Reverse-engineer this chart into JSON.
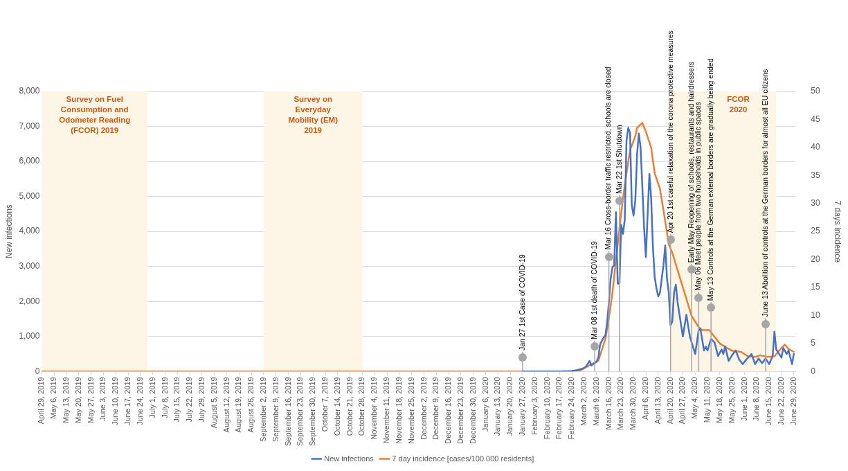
{
  "chart_data": {
    "type": "line",
    "xlabel": null,
    "ylabel": "New infections",
    "y2label": "7 days incidence",
    "xlim": [
      "2019-04-29",
      "2020-06-30"
    ],
    "xticks": [
      {
        "value": "2019-04-29",
        "label": "April 29, 2019"
      },
      {
        "value": "2019-05-06",
        "label": "May 6, 2019"
      },
      {
        "value": "2019-05-13",
        "label": "May 13, 2019"
      },
      {
        "value": "2019-05-20",
        "label": "May 20, 2019"
      },
      {
        "value": "2019-05-27",
        "label": "May 27, 2019"
      },
      {
        "value": "2019-06-03",
        "label": "June 3, 2019"
      },
      {
        "value": "2019-06-10",
        "label": "June 10, 2019"
      },
      {
        "value": "2019-06-17",
        "label": "June 17, 2019"
      },
      {
        "value": "2019-06-24",
        "label": "June 24, 2019"
      },
      {
        "value": "2019-07-01",
        "label": "July 1, 2019"
      },
      {
        "value": "2019-07-08",
        "label": "July 8, 2019"
      },
      {
        "value": "2019-07-15",
        "label": "July 15, 2019"
      },
      {
        "value": "2019-07-22",
        "label": "July 22, 2019"
      },
      {
        "value": "2019-07-29",
        "label": "July 29, 2019"
      },
      {
        "value": "2019-08-05",
        "label": "August 5, 2019"
      },
      {
        "value": "2019-08-12",
        "label": "August 12, 2019"
      },
      {
        "value": "2019-08-19",
        "label": "August 19, 2019"
      },
      {
        "value": "2019-08-26",
        "label": "August 26, 2019"
      },
      {
        "value": "2019-09-02",
        "label": "September 2, 2019"
      },
      {
        "value": "2019-09-09",
        "label": "September 9, 2019"
      },
      {
        "value": "2019-09-16",
        "label": "September 16, 2019"
      },
      {
        "value": "2019-09-23",
        "label": "September 23, 2019"
      },
      {
        "value": "2019-09-30",
        "label": "September 30, 2019"
      },
      {
        "value": "2019-10-07",
        "label": "October 7, 2019"
      },
      {
        "value": "2019-10-14",
        "label": "October 14, 2019"
      },
      {
        "value": "2019-10-21",
        "label": "October 21, 2019"
      },
      {
        "value": "2019-10-28",
        "label": "October 28, 2019"
      },
      {
        "value": "2019-11-04",
        "label": "November 4, 2019"
      },
      {
        "value": "2019-11-11",
        "label": "November 11, 2019"
      },
      {
        "value": "2019-11-18",
        "label": "November 18, 2019"
      },
      {
        "value": "2019-11-25",
        "label": "November 25, 2019"
      },
      {
        "value": "2019-12-02",
        "label": "December 2, 2019"
      },
      {
        "value": "2019-12-09",
        "label": "December 9, 2019"
      },
      {
        "value": "2019-12-16",
        "label": "December 16, 2019"
      },
      {
        "value": "2019-12-23",
        "label": "December 23, 2019"
      },
      {
        "value": "2019-12-30",
        "label": "December 30, 2019"
      },
      {
        "value": "2020-01-06",
        "label": "January 6, 2020"
      },
      {
        "value": "2020-01-13",
        "label": "January 13, 2020"
      },
      {
        "value": "2020-01-20",
        "label": "January 20, 2020"
      },
      {
        "value": "2020-01-27",
        "label": "January 27, 2020"
      },
      {
        "value": "2020-02-03",
        "label": "February 3, 2020"
      },
      {
        "value": "2020-02-10",
        "label": "February 10, 2020"
      },
      {
        "value": "2020-02-17",
        "label": "February 17, 2020"
      },
      {
        "value": "2020-02-24",
        "label": "February 24, 2020"
      },
      {
        "value": "2020-03-02",
        "label": "March 2, 2020"
      },
      {
        "value": "2020-03-09",
        "label": "March 9, 2020"
      },
      {
        "value": "2020-03-16",
        "label": "March 16, 2020"
      },
      {
        "value": "2020-03-23",
        "label": "March 23, 2020"
      },
      {
        "value": "2020-03-30",
        "label": "March 30, 2020"
      },
      {
        "value": "2020-04-06",
        "label": "April 6, 2020"
      },
      {
        "value": "2020-04-13",
        "label": "April 13, 2020"
      },
      {
        "value": "2020-04-20",
        "label": "April 20, 2020"
      },
      {
        "value": "2020-04-27",
        "label": "April 27, 2020"
      },
      {
        "value": "2020-05-04",
        "label": "May 4, 2020"
      },
      {
        "value": "2020-05-11",
        "label": "May 11, 2020"
      },
      {
        "value": "2020-05-18",
        "label": "May 18, 2020"
      },
      {
        "value": "2020-05-25",
        "label": "May 25, 2020"
      },
      {
        "value": "2020-06-01",
        "label": "June 1, 2020"
      },
      {
        "value": "2020-06-08",
        "label": "June 8, 2020"
      },
      {
        "value": "2020-06-15",
        "label": "June 15, 2020"
      },
      {
        "value": "2020-06-22",
        "label": "June 22, 2020"
      },
      {
        "value": "2020-06-29",
        "label": "June 29, 2020"
      }
    ],
    "ylim": [
      0,
      8000
    ],
    "yticks": [
      0,
      {
        "value": 1000,
        "label": "1,000"
      },
      {
        "value": 2000,
        "label": "2,000"
      },
      {
        "value": 3000,
        "label": "3,000"
      },
      {
        "value": 4000,
        "label": "4,000"
      },
      {
        "value": 5000,
        "label": "5,000"
      },
      {
        "value": 6000,
        "label": "6,000"
      },
      {
        "value": 7000,
        "label": "7,000"
      },
      {
        "value": 8000,
        "label": "8,000"
      }
    ],
    "y2lim": [
      0,
      50
    ],
    "y2ticks": [
      0,
      5,
      10,
      15,
      20,
      25,
      30,
      35,
      40,
      45,
      50
    ],
    "grid": "y",
    "legend": "bottom",
    "marker": "none",
    "line_style": "solid",
    "series": [
      {
        "name": "New infections",
        "color": "#4472c4",
        "x": [
          "2020-01-27",
          "2020-02-03",
          "2020-02-10",
          "2020-02-17",
          "2020-02-24",
          "2020-02-27",
          "2020-03-01",
          "2020-03-03",
          "2020-03-05",
          "2020-03-06",
          "2020-03-09",
          "2020-03-10",
          "2020-03-11",
          "2020-03-13",
          "2020-03-14",
          "2020-03-15",
          "2020-03-16",
          "2020-03-17",
          "2020-03-18",
          "2020-03-19",
          "2020-03-20",
          "2020-03-21",
          "2020-03-22",
          "2020-03-23",
          "2020-03-24",
          "2020-03-25",
          "2020-03-26",
          "2020-03-27",
          "2020-03-28",
          "2020-03-29",
          "2020-03-30",
          "2020-03-31",
          "2020-04-01",
          "2020-04-02",
          "2020-04-03",
          "2020-04-04",
          "2020-04-05",
          "2020-04-06",
          "2020-04-07",
          "2020-04-08",
          "2020-04-09",
          "2020-04-10",
          "2020-04-11",
          "2020-04-12",
          "2020-04-13",
          "2020-04-14",
          "2020-04-15",
          "2020-04-16",
          "2020-04-17",
          "2020-04-18",
          "2020-04-19",
          "2020-04-20",
          "2020-04-21",
          "2020-04-22",
          "2020-04-23",
          "2020-04-24",
          "2020-04-27",
          "2020-04-29",
          "2020-05-01",
          "2020-05-04",
          "2020-05-06",
          "2020-05-07",
          "2020-05-09",
          "2020-05-10",
          "2020-05-11",
          "2020-05-13",
          "2020-05-15",
          "2020-05-17",
          "2020-05-19",
          "2020-05-20",
          "2020-05-21",
          "2020-05-23",
          "2020-05-25",
          "2020-05-27",
          "2020-05-29",
          "2020-05-31",
          "2020-06-02",
          "2020-06-05",
          "2020-06-07",
          "2020-06-09",
          "2020-06-11",
          "2020-06-13",
          "2020-06-15",
          "2020-06-17",
          "2020-06-18",
          "2020-06-19",
          "2020-06-22",
          "2020-06-23",
          "2020-06-25",
          "2020-06-26",
          "2020-06-28",
          "2020-06-29"
        ],
        "values": [
          0,
          0,
          0,
          0,
          10,
          40,
          80,
          140,
          300,
          170,
          280,
          400,
          770,
          970,
          1030,
          1390,
          1980,
          2650,
          2970,
          3040,
          4550,
          2510,
          2510,
          4190,
          3930,
          4330,
          6600,
          6960,
          6820,
          4750,
          4450,
          4880,
          6200,
          6800,
          6400,
          5270,
          4090,
          3270,
          4490,
          5640,
          4950,
          3560,
          2700,
          2380,
          2150,
          2250,
          2650,
          3040,
          3600,
          2650,
          2250,
          1320,
          1420,
          2250,
          2480,
          1980,
          1000,
          1620,
          1000,
          500,
          1190,
          1220,
          600,
          710,
          600,
          930,
          830,
          440,
          630,
          500,
          720,
          300,
          470,
          600,
          340,
          210,
          340,
          500,
          210,
          370,
          240,
          370,
          210,
          440,
          1140,
          630,
          400,
          670,
          500,
          600,
          210,
          500
        ]
      },
      {
        "name": "7 day incidence [cases/100.000 residents]",
        "color": "#ed7d31",
        "axis": "y2",
        "x": [
          "2019-04-29",
          "2020-02-22",
          "2020-02-29",
          "2020-03-05",
          "2020-03-10",
          "2020-03-14",
          "2020-03-16",
          "2020-03-18",
          "2020-03-20",
          "2020-03-22",
          "2020-03-24",
          "2020-03-26",
          "2020-03-28",
          "2020-03-31",
          "2020-04-01",
          "2020-04-04",
          "2020-04-06",
          "2020-04-09",
          "2020-04-11",
          "2020-04-14",
          "2020-04-17",
          "2020-04-19",
          "2020-04-21",
          "2020-04-24",
          "2020-04-28",
          "2020-05-02",
          "2020-05-06",
          "2020-05-08",
          "2020-05-12",
          "2020-05-15",
          "2020-05-18",
          "2020-05-22",
          "2020-05-25",
          "2020-05-30",
          "2020-06-03",
          "2020-06-07",
          "2020-06-10",
          "2020-06-14",
          "2020-06-18",
          "2020-06-22",
          "2020-06-24",
          "2020-06-26",
          "2020-06-29"
        ],
        "values": [
          0,
          0,
          0.2,
          1.1,
          1.9,
          5.8,
          9.5,
          14,
          19.8,
          25.6,
          30.9,
          35.4,
          39.5,
          42,
          43.5,
          44.4,
          42.8,
          40,
          35.4,
          32.6,
          26.8,
          22.7,
          21.2,
          18.1,
          14,
          9.9,
          7.9,
          7.4,
          7.4,
          6.2,
          5,
          4.2,
          3.7,
          3.5,
          2.7,
          2.6,
          2.9,
          2.6,
          2.7,
          4.2,
          4.8,
          4,
          3.5
        ]
      }
    ],
    "bands": [
      {
        "axis": "x",
        "from": "2019-04-29",
        "to": "2019-06-28",
        "label": "Survey on Fuel Consumption and Odometer Reading (FCOR) 2019",
        "color": "#fdf6e6"
      },
      {
        "axis": "x",
        "from": "2019-09-02",
        "to": "2019-10-28",
        "label": "Survey on Everyday Mobility (EM) 2019",
        "color": "#fdf6e6"
      },
      {
        "axis": "x",
        "from": "2020-04-20",
        "to": "2020-06-19",
        "label": "FCOR 2020",
        "color": "#fdf6e6"
      }
    ],
    "ref_lines": [
      {
        "axis": "x",
        "value": "2020-01-27",
        "label": "Jan 27 1st Case of COVID-19",
        "color": "#a6a6a6"
      },
      {
        "axis": "x",
        "value": "2020-03-08",
        "label": "Mar 08 1st death of COVID-19",
        "color": "#a6a6a6"
      },
      {
        "axis": "x",
        "value": "2020-03-16",
        "label": "Mar 16 Cross-border traffic restricted, schools are closed",
        "color": "#a6a6a6"
      },
      {
        "axis": "x",
        "value": "2020-03-22",
        "label": "Mar 22 1st Shutdown",
        "color": "#a6a6a6"
      },
      {
        "axis": "x",
        "value": "2020-04-20",
        "label": "Apr 20 1st careful relaxation of the corona protective measures",
        "color": "#a6a6a6"
      },
      {
        "axis": "x",
        "value": "2020-05-02",
        "label": "Early May Reopening of schools, restaurants and hairdressers",
        "color": "#a6a6a6"
      },
      {
        "axis": "x",
        "value": "2020-05-06",
        "label": "May 06 Meet people from two households in public spaces",
        "color": "#a6a6a6"
      },
      {
        "axis": "x",
        "value": "2020-05-13",
        "label": "May 13 Controls at the German external borders are gradually being ended",
        "color": "#a6a6a6"
      },
      {
        "axis": "x",
        "value": "2020-06-13",
        "label": "June 13 Abolition of controls at the German borders for almost all EU citizens",
        "color": "#a6a6a6"
      }
    ]
  }
}
